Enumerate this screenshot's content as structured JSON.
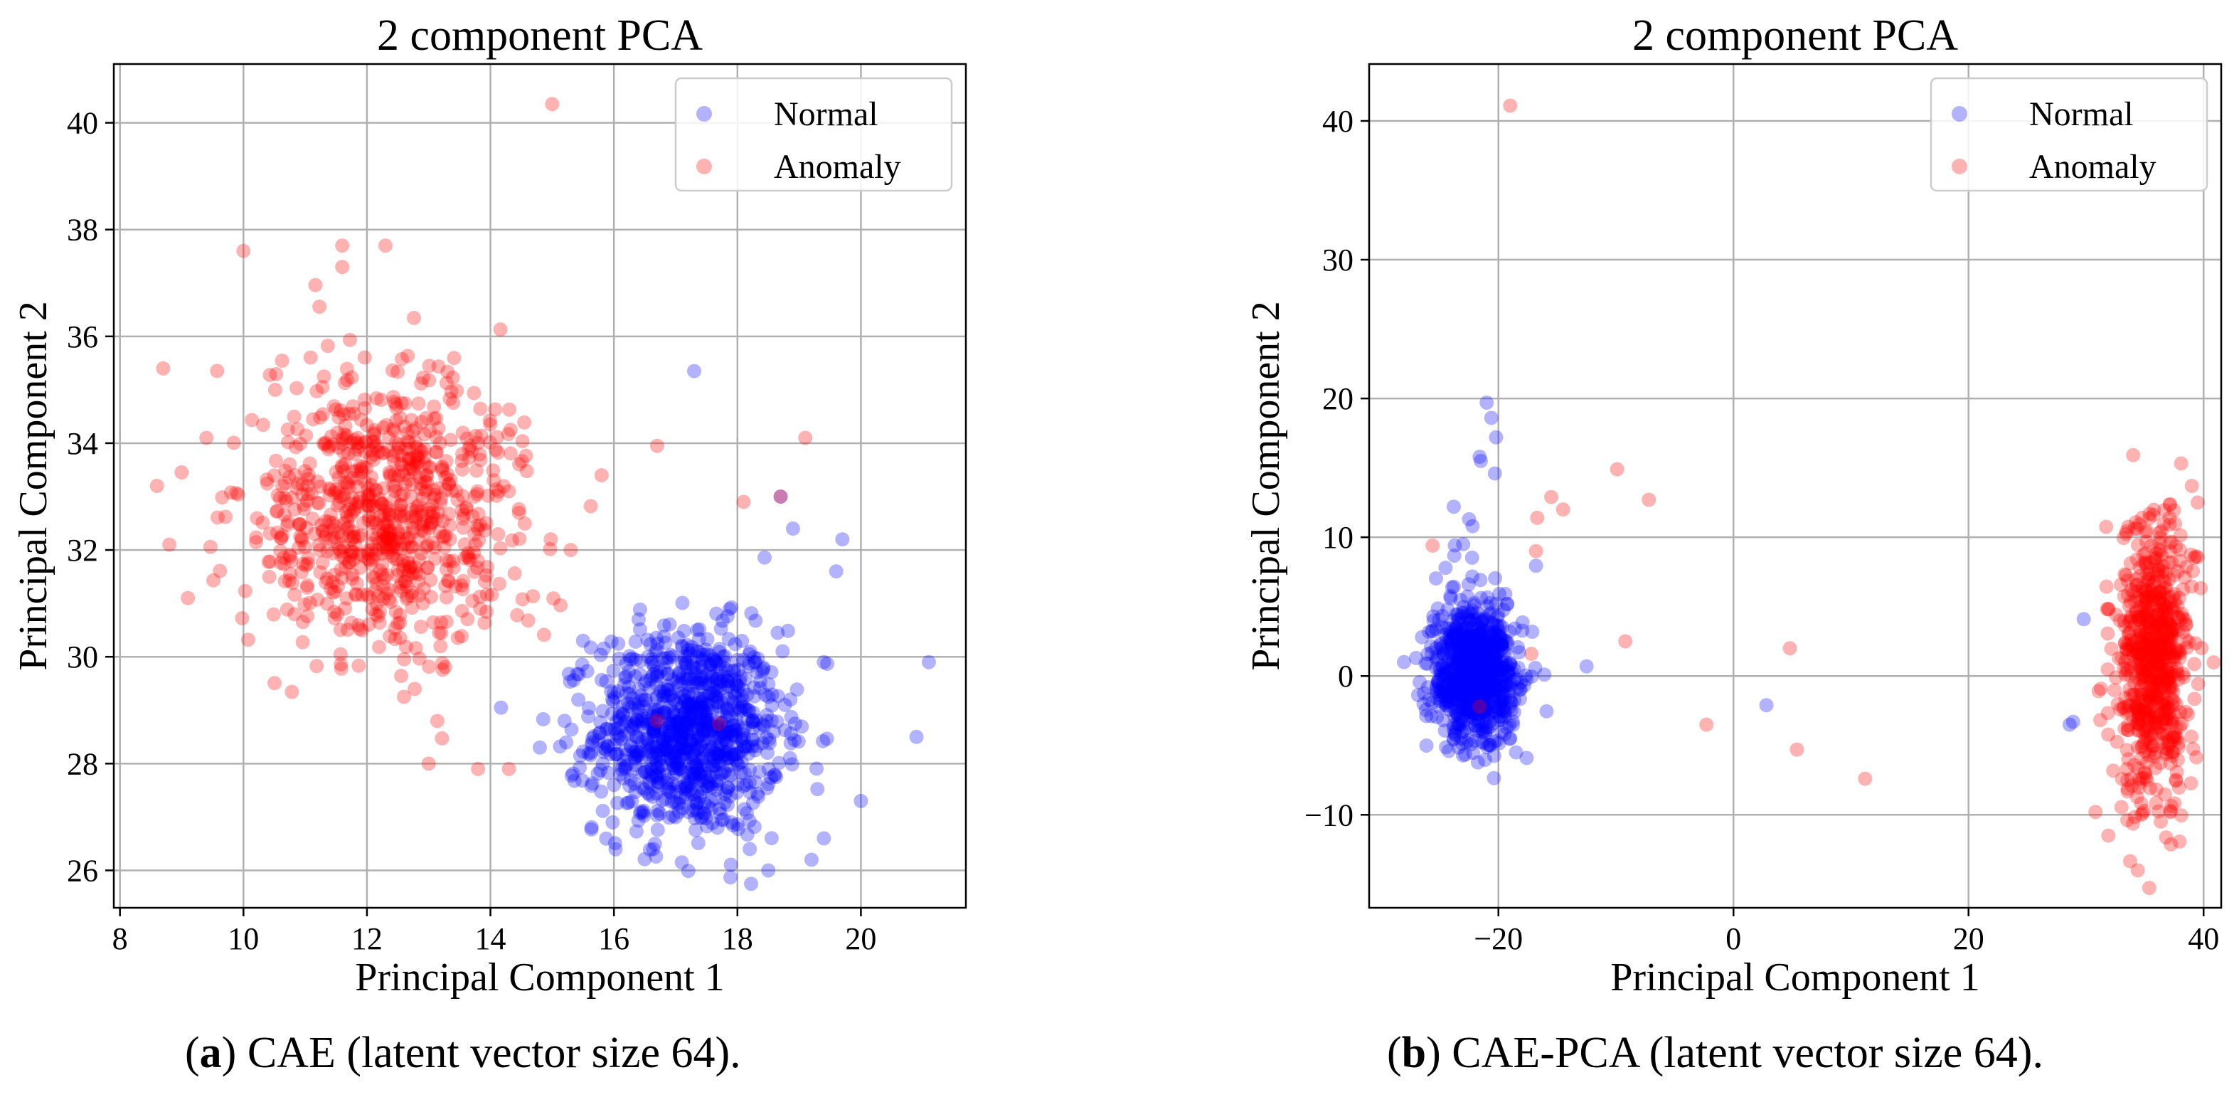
{
  "figure": {
    "captions": [
      {
        "letter": "a",
        "text": "CAE (latent vector size 64)."
      },
      {
        "letter": "b",
        "text": "CAE-PCA (latent vector size 64)."
      }
    ]
  },
  "chart_data": [
    {
      "type": "scatter",
      "title": "2 component PCA",
      "xlabel": "Principal Component 1",
      "ylabel": "Principal Component 2",
      "xlim": [
        7.9,
        21.7
      ],
      "ylim": [
        25.3,
        41.1
      ],
      "xticks": [
        8,
        10,
        12,
        14,
        16,
        18,
        20
      ],
      "yticks": [
        26,
        28,
        30,
        32,
        34,
        36,
        38,
        40
      ],
      "grid": true,
      "legend_position": "top-right",
      "series": [
        {
          "name": "Normal",
          "color": "#0000ff",
          "alpha": 0.3,
          "n_points": 1000,
          "cluster": {
            "center": [
              17.2,
              28.6
            ],
            "spread": [
              0.75,
              0.95
            ]
          },
          "outliers": [
            [
              17.3,
              35.35
            ],
            [
              21.1,
              29.9
            ],
            [
              20.9,
              28.5
            ],
            [
              19.7,
              32.2
            ],
            [
              19.6,
              31.6
            ],
            [
              19.4,
              29.9
            ],
            [
              20.0,
              27.3
            ],
            [
              18.7,
              33.0
            ],
            [
              18.9,
              32.4
            ],
            [
              16.4,
              30.7
            ],
            [
              15.5,
              30.3
            ],
            [
              15.2,
              28.8
            ],
            [
              14.8,
              28.3
            ],
            [
              16.0,
              27.6
            ],
            [
              17.1,
              26.15
            ],
            [
              18.5,
              26.0
            ],
            [
              19.2,
              26.2
            ],
            [
              19.4,
              26.6
            ],
            [
              18.2,
              26.4
            ]
          ]
        },
        {
          "name": "Anomaly",
          "color": "#ff0000",
          "alpha": 0.3,
          "n_points": 800,
          "cluster": {
            "center": [
              12.3,
              32.6
            ],
            "spread": [
              1.05,
              1.35
            ]
          },
          "outliers": [
            [
              15.0,
              40.35
            ],
            [
              8.7,
              35.4
            ],
            [
              8.6,
              33.2
            ],
            [
              8.8,
              32.1
            ],
            [
              9.1,
              31.1
            ],
            [
              9.4,
              34.1
            ],
            [
              10.0,
              37.6
            ],
            [
              11.6,
              37.7
            ],
            [
              11.6,
              37.3
            ],
            [
              12.3,
              37.7
            ],
            [
              18.1,
              32.9
            ],
            [
              19.1,
              34.1
            ],
            [
              18.7,
              33.0
            ],
            [
              16.7,
              33.95
            ],
            [
              15.8,
              33.4
            ],
            [
              15.3,
              32.0
            ],
            [
              13.8,
              27.9
            ],
            [
              13.0,
              28.0
            ],
            [
              14.3,
              27.9
            ],
            [
              17.7,
              28.75
            ],
            [
              16.7,
              28.8
            ],
            [
              12.6,
              29.25
            ]
          ]
        }
      ]
    },
    {
      "type": "scatter",
      "title": "2 component PCA",
      "xlabel": "Principal Component 1",
      "ylabel": "Principal Component 2",
      "xlim": [
        -31,
        41.5
      ],
      "ylim": [
        -16.7,
        44.1
      ],
      "xticks": [
        -20,
        0,
        20,
        40
      ],
      "yticks": [
        -10,
        0,
        10,
        20,
        30,
        40
      ],
      "grid": true,
      "legend_position": "top-right",
      "series": [
        {
          "name": "Normal",
          "color": "#0000ff",
          "alpha": 0.3,
          "n_points": 900,
          "cluster": {
            "center": [
              -22.0,
              0.3
            ],
            "spread": [
              1.8,
              2.5
            ]
          },
          "outliers": [
            [
              -21.0,
              19.7
            ],
            [
              -20.6,
              18.6
            ],
            [
              -20.2,
              17.2
            ],
            [
              -21.5,
              15.5
            ],
            [
              -20.3,
              14.6
            ],
            [
              -22.5,
              11.3
            ],
            [
              -23.0,
              9.5
            ],
            [
              -23.8,
              12.2
            ],
            [
              -24.5,
              7.8
            ],
            [
              -26.5,
              2.8
            ],
            [
              -27.0,
              1.3
            ],
            [
              -12.5,
              0.7
            ],
            [
              -18.5,
              -5.5
            ],
            [
              -17.6,
              -5.9
            ],
            [
              2.8,
              -2.1
            ],
            [
              29.8,
              4.1
            ],
            [
              28.9,
              -3.3
            ],
            [
              28.6,
              -3.5
            ],
            [
              -21.6,
              15.8
            ],
            [
              -22.2,
              10.8
            ]
          ]
        },
        {
          "name": "Anomaly",
          "color": "#ff0000",
          "alpha": 0.3,
          "n_points": 700,
          "cluster": {
            "center": [
              35.8,
              1.5
            ],
            "spread": [
              1.5,
              5.2
            ]
          },
          "outliers": [
            [
              -19.0,
              41.1
            ],
            [
              -9.9,
              14.9
            ],
            [
              -7.2,
              12.7
            ],
            [
              -14.5,
              12.0
            ],
            [
              -15.5,
              12.9
            ],
            [
              -16.7,
              11.4
            ],
            [
              -16.8,
              9.0
            ],
            [
              -25.6,
              9.4
            ],
            [
              -9.2,
              2.5
            ],
            [
              -17.2,
              1.6
            ],
            [
              4.8,
              2.0
            ],
            [
              -2.3,
              -3.5
            ],
            [
              5.4,
              -5.3
            ],
            [
              11.2,
              -7.4
            ],
            [
              -21.6,
              -2.2
            ],
            [
              34.4,
              -14.0
            ],
            [
              30.8,
              -9.8
            ],
            [
              31.9,
              -11.5
            ],
            [
              39.0,
              13.7
            ],
            [
              39.5,
              12.5
            ]
          ]
        }
      ]
    }
  ]
}
